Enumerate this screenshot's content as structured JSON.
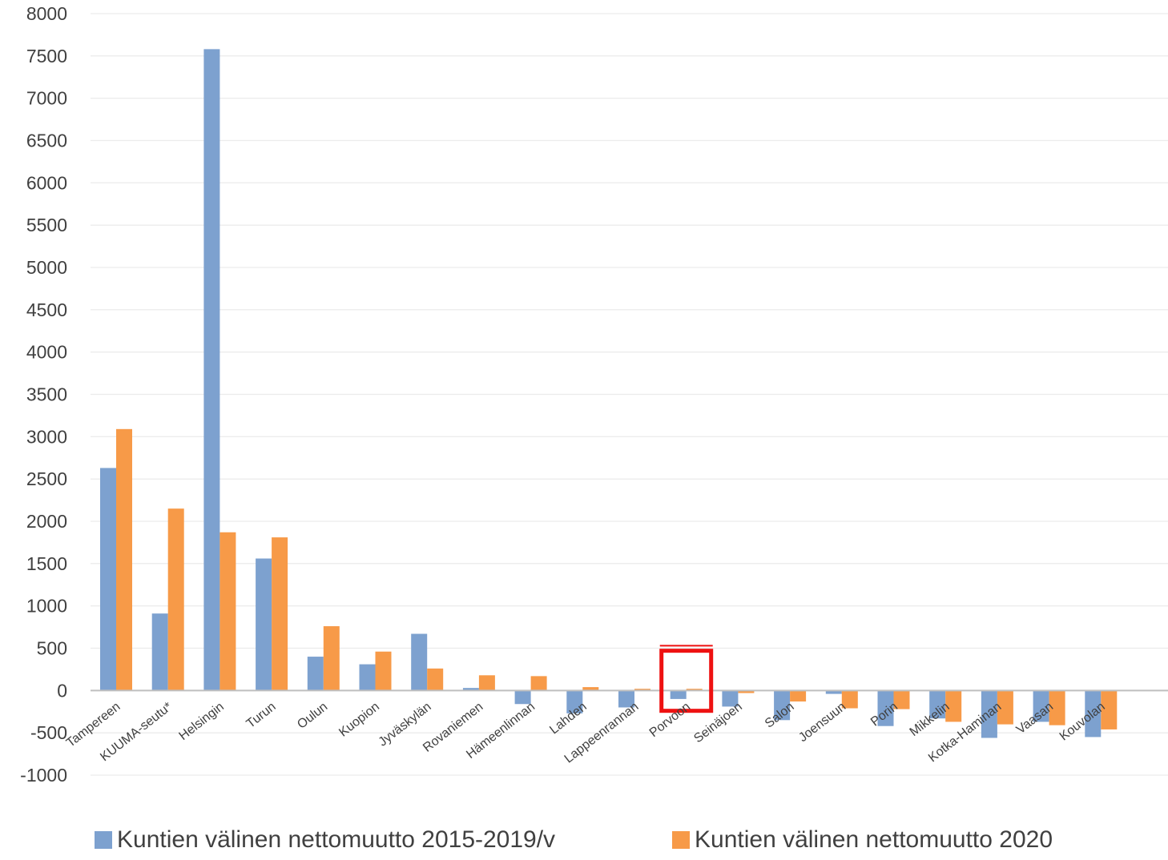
{
  "chart_data": {
    "type": "bar",
    "title": "",
    "xlabel": "",
    "ylabel": "",
    "ylim": [
      -1000,
      8000
    ],
    "ytick_step": 500,
    "grid": true,
    "legend_position": "bottom",
    "categories": [
      "Tampereen",
      "KUUMA-seutu*",
      "Helsingin",
      "Turun",
      "Oulun",
      "Kuopion",
      "Jyväskylän",
      "Rovaniemen",
      "Hämeenlinnan",
      "Lahden",
      "Lappeenrannan",
      "Porvoon",
      "Seinäjoen",
      "Salon",
      "Joensuun",
      "Porin",
      "Mikkelin",
      "Kotka-Haminan",
      "Vaasan",
      "Kouvolan"
    ],
    "series": [
      {
        "name": "Kuntien välinen nettomuutto 2015-2019/v",
        "color": "#7da1cf",
        "values": [
          2630,
          910,
          7580,
          1560,
          400,
          310,
          670,
          30,
          -160,
          -270,
          -200,
          -100,
          -190,
          -350,
          -40,
          -420,
          -330,
          -560,
          -370,
          -550
        ]
      },
      {
        "name": "Kuntien välinen nettomuutto 2020",
        "color": "#f79a48",
        "values": [
          3090,
          2150,
          1870,
          1810,
          760,
          460,
          260,
          180,
          170,
          40,
          20,
          20,
          -30,
          -130,
          -210,
          -220,
          -370,
          -400,
          -410,
          -460
        ]
      }
    ],
    "highlight": {
      "category": "Porvoon",
      "color": "#ee1111"
    }
  }
}
